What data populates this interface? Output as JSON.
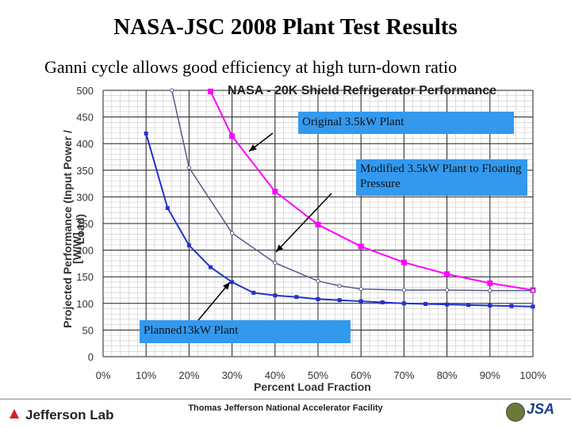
{
  "slide": {
    "title": "NASA-JSC 2008 Plant Test Results",
    "subtitle": "Ganni cycle allows good efficiency at high turn-down ratio"
  },
  "callouts": {
    "original": "Original 3.5kW Plant",
    "modified": "Modified 3.5kW Plant to Floating Pressure",
    "planned": "Planned13kW Plant"
  },
  "footer": {
    "logo_left": "Jefferson Lab",
    "center": "Thomas Jefferson National Accelerator Facility",
    "logo_right": "JSA"
  },
  "colors": {
    "original": "#ff00ff",
    "modified": "#555a8a",
    "planned": "#2233cc",
    "callout_bg": "#3399ee"
  },
  "chart_data": {
    "type": "line",
    "title": "NASA - 20K Shield Refrigerator Performance",
    "xlabel": "Percent Load Fraction",
    "ylabel": "Projected Performance (Input Power / Load)",
    "yunit": "[W/W]",
    "xlim": [
      0,
      100
    ],
    "ylim": [
      0,
      500
    ],
    "x_ticks": [
      "0%",
      "10%",
      "20%",
      "30%",
      "40%",
      "50%",
      "60%",
      "70%",
      "80%",
      "90%",
      "100%"
    ],
    "y_ticks": [
      "0",
      "50",
      "100",
      "150",
      "200",
      "250",
      "300",
      "350",
      "400",
      "450",
      "500"
    ],
    "grid": true,
    "series": [
      {
        "key": "original",
        "x": [
          25,
          30,
          40,
          50,
          60,
          70,
          80,
          90,
          100
        ],
        "y": [
          498,
          414,
          310,
          248,
          207,
          177,
          155,
          138,
          125
        ]
      },
      {
        "key": "modified",
        "x": [
          16,
          20,
          30,
          40,
          50,
          55,
          60,
          70,
          80,
          90,
          100
        ],
        "y": [
          500,
          355,
          232,
          176,
          142,
          133,
          127,
          125,
          125,
          124,
          124
        ]
      },
      {
        "key": "planned",
        "x": [
          10,
          15,
          20,
          25,
          30,
          35,
          40,
          45,
          50,
          55,
          60,
          65,
          70,
          75,
          80,
          85,
          90,
          95,
          100
        ],
        "y": [
          419,
          279,
          209,
          168,
          140,
          120,
          115,
          112,
          108,
          106,
          104,
          102,
          100,
          99,
          98,
          97,
          96,
          95,
          94
        ]
      }
    ]
  }
}
